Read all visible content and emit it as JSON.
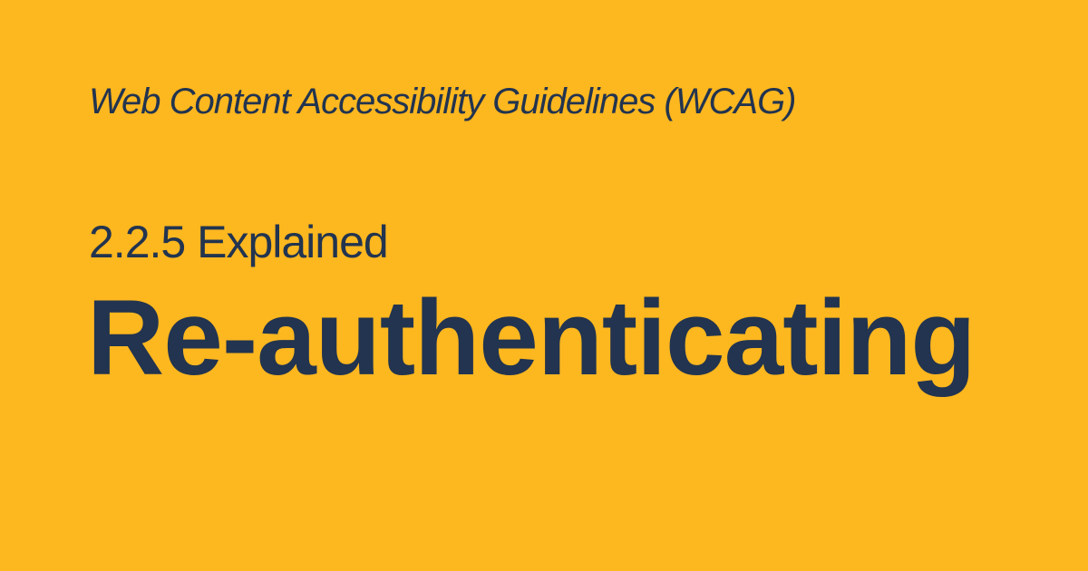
{
  "page": {
    "background_color": "#FDB71F",
    "text_color": "#22344F"
  },
  "header": {
    "kicker": "Web Content Accessibility Guidelines (WCAG)",
    "subtitle": "2.2.5 Explained",
    "title": "Re-authenticating"
  }
}
